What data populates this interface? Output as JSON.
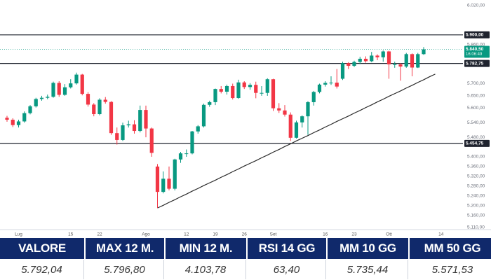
{
  "chart_data": {
    "type": "candlestick",
    "categories": [
      null,
      null,
      "Lug",
      null,
      null,
      null,
      null,
      null,
      null,
      null,
      null,
      "15",
      null,
      null,
      null,
      null,
      "22",
      null,
      null,
      null,
      null,
      null,
      null,
      null,
      "Ago",
      null,
      null,
      null,
      null,
      null,
      null,
      "12",
      null,
      null,
      null,
      null,
      "19",
      null,
      null,
      null,
      null,
      "26",
      null,
      null,
      null,
      null,
      "Set",
      null,
      null,
      null,
      null,
      null,
      null,
      null,
      null,
      "16",
      null,
      null,
      null,
      null,
      "23",
      null,
      null,
      null,
      null,
      null,
      "Ott",
      null,
      null,
      null,
      null,
      null,
      null,
      null,
      null,
      "14"
    ],
    "open": [
      5560,
      5552,
      5530,
      5545,
      5579,
      5607,
      5637,
      5642,
      5646,
      5703,
      5654,
      5685,
      5701,
      5737,
      5658,
      5614,
      5575,
      5634,
      5625,
      5497,
      5469,
      5529,
      5533,
      5506,
      5592,
      5516,
      5360,
      5256,
      5310,
      5269,
      5389,
      5414,
      5414,
      5504,
      5525,
      5613,
      5624,
      5678,
      5667,
      5690,
      5641,
      5705,
      5686,
      5695,
      5662,
      5662,
      5718,
      5599,
      5590,
      5573,
      5478,
      5541,
      5566,
      5624,
      5666,
      5696,
      5703,
      5704,
      5720,
      5784,
      5773,
      5789,
      5802,
      5792,
      5815,
      5808,
      5832,
      5779,
      5779,
      5770,
      5821,
      5766,
      5821,
      null,
      null,
      null
    ],
    "high": [
      5568,
      5558,
      5552,
      5586,
      5612,
      5642,
      5650,
      5655,
      5708,
      5710,
      5698,
      5718,
      5745,
      5740,
      5665,
      5620,
      5640,
      5645,
      5628,
      5520,
      5540,
      5548,
      5550,
      5610,
      5610,
      5520,
      5370,
      5340,
      5360,
      5392,
      5420,
      5430,
      5506,
      5530,
      5618,
      5630,
      5680,
      5690,
      5696,
      5700,
      5716,
      5710,
      5702,
      5708,
      5690,
      5722,
      5720,
      5620,
      5612,
      5582,
      5548,
      5570,
      5628,
      5670,
      5700,
      5710,
      5730,
      5760,
      5790,
      5788,
      5794,
      5810,
      5812,
      5830,
      5820,
      5836,
      5835,
      5790,
      5784,
      5826,
      5824,
      5826,
      5850,
      null,
      null,
      null
    ],
    "low": [
      5544,
      5522,
      5520,
      5540,
      5574,
      5602,
      5630,
      5636,
      5642,
      5646,
      5650,
      5680,
      5696,
      5652,
      5606,
      5566,
      5570,
      5618,
      5490,
      5450,
      5465,
      5520,
      5495,
      5500,
      5480,
      5400,
      5190,
      5250,
      5262,
      5262,
      5375,
      5400,
      5410,
      5495,
      5520,
      5605,
      5612,
      5660,
      5655,
      5635,
      5638,
      5678,
      5675,
      5640,
      5650,
      5650,
      5588,
      5580,
      5565,
      5465,
      5475,
      5520,
      5490,
      5610,
      5660,
      5688,
      5695,
      5680,
      5715,
      5760,
      5768,
      5780,
      5786,
      5788,
      5796,
      5790,
      5720,
      5765,
      5712,
      5765,
      5730,
      5764,
      5818,
      null,
      null,
      null
    ],
    "close": [
      5552,
      5530,
      5545,
      5579,
      5607,
      5637,
      5642,
      5646,
      5703,
      5654,
      5685,
      5701,
      5737,
      5658,
      5614,
      5575,
      5634,
      5625,
      5497,
      5469,
      5529,
      5533,
      5506,
      5592,
      5516,
      5416,
      5256,
      5310,
      5269,
      5389,
      5414,
      5414,
      5504,
      5525,
      5613,
      5624,
      5678,
      5667,
      5690,
      5641,
      5705,
      5686,
      5695,
      5662,
      5662,
      5718,
      5599,
      5590,
      5573,
      5478,
      5541,
      5566,
      5624,
      5666,
      5696,
      5703,
      5704,
      5688,
      5784,
      5773,
      5789,
      5802,
      5792,
      5815,
      5808,
      5832,
      5779,
      5779,
      5770,
      5821,
      5766,
      5821,
      5840.5,
      null,
      null,
      null
    ],
    "up_color": "#089981",
    "down_color": "#f23645",
    "ylim": [
      5110,
      6020
    ],
    "yticks": [
      {
        "value": 6020,
        "label": "6.020,00"
      },
      {
        "value": 5860,
        "label": "5.860,00"
      },
      {
        "value": 5700,
        "label": "5.700,00"
      },
      {
        "value": 5650,
        "label": "5.650,00"
      },
      {
        "value": 5600,
        "label": "5.600,00"
      },
      {
        "value": 5540,
        "label": "5.540,00"
      },
      {
        "value": 5480,
        "label": "5.480,00"
      },
      {
        "value": 5400,
        "label": "5.400,00"
      },
      {
        "value": 5360,
        "label": "5.360,00"
      },
      {
        "value": 5320,
        "label": "5.320,00"
      },
      {
        "value": 5280,
        "label": "5.280,00"
      },
      {
        "value": 5240,
        "label": "5.240,00"
      },
      {
        "value": 5200,
        "label": "5.200,00"
      },
      {
        "value": 5160,
        "label": "5.160,00"
      },
      {
        "value": 5110,
        "label": "5.110,00"
      }
    ],
    "levels": [
      {
        "value": 5900,
        "label": "5.900,00"
      },
      {
        "value": 5782.75,
        "label": "5.782,75"
      },
      {
        "value": 5454.75,
        "label": "5.454,75"
      }
    ],
    "level_color": "#1e222d",
    "last_price": {
      "value": 5840.5,
      "label": "5.840,50",
      "time": "16:06:49",
      "color": "#089981"
    },
    "trendline": {
      "color": "#2a2a2a",
      "values": [
        null,
        null,
        null,
        null,
        null,
        null,
        null,
        null,
        null,
        null,
        null,
        null,
        null,
        null,
        null,
        null,
        null,
        null,
        null,
        null,
        null,
        null,
        null,
        null,
        null,
        null,
        5190,
        5201,
        5213,
        5224,
        5236,
        5247,
        5259,
        5270,
        5282,
        5293,
        5304,
        5316,
        5327,
        5339,
        5350,
        5362,
        5373,
        5384,
        5396,
        5407,
        5419,
        5430,
        5442,
        5453,
        5465,
        5476,
        5487,
        5499,
        5510,
        5522,
        5533,
        5545,
        5556,
        5567,
        5579,
        5590,
        5602,
        5613,
        5625,
        5636,
        5648,
        5659,
        5670,
        5682,
        5693,
        5705,
        5716,
        5728,
        5739,
        null
      ]
    }
  },
  "table": {
    "header": [
      "VALORE",
      "MAX 12 M.",
      "MIN 12 M.",
      "RSI 14 GG",
      "MM 10 GG",
      "MM 50 GG"
    ],
    "rows": [
      [
        "5.792,04",
        "5.796,80",
        "4.103,78",
        "63,40",
        "5.735,44",
        "5.571,53"
      ]
    ]
  }
}
